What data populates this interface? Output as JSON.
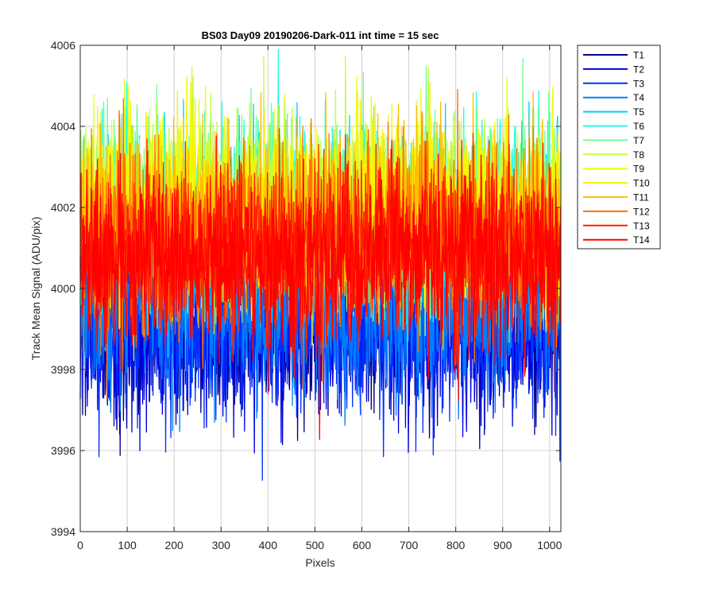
{
  "chart_data": {
    "type": "line",
    "title": "BS03 Day09 20190206-Dark-011 int time = 15 sec",
    "xlabel": "Pixels",
    "ylabel": "Track Mean Signal (ADU/pix)",
    "xlim": [
      0,
      1024
    ],
    "ylim": [
      3994,
      4006
    ],
    "xticks": [
      0,
      100,
      200,
      300,
      400,
      500,
      600,
      700,
      800,
      900,
      1000
    ],
    "yticks": [
      3994,
      3996,
      3998,
      4000,
      4002,
      4004,
      4006
    ],
    "grid": true,
    "legend_position": "outside-top-right",
    "x_points": 1024,
    "series": [
      {
        "name": "T1",
        "color": "#00008f",
        "mean": 3999.0,
        "spread": 1.0
      },
      {
        "name": "T2",
        "color": "#0000df",
        "mean": 3999.0,
        "spread": 1.1
      },
      {
        "name": "T3",
        "color": "#0030ff",
        "mean": 3999.2,
        "spread": 1.1
      },
      {
        "name": "T4",
        "color": "#0080ff",
        "mean": 3999.6,
        "spread": 1.1
      },
      {
        "name": "T5",
        "color": "#00cfff",
        "mean": 4001.6,
        "spread": 1.1
      },
      {
        "name": "T6",
        "color": "#20ffdf",
        "mean": 4001.9,
        "spread": 1.1
      },
      {
        "name": "T7",
        "color": "#70ff8f",
        "mean": 4002.0,
        "spread": 1.1
      },
      {
        "name": "T8",
        "color": "#bfff40",
        "mean": 4002.0,
        "spread": 1.1
      },
      {
        "name": "T9",
        "color": "#e8ff10",
        "mean": 4001.9,
        "spread": 1.1
      },
      {
        "name": "T10",
        "color": "#ffef00",
        "mean": 4001.8,
        "spread": 1.1
      },
      {
        "name": "T11",
        "color": "#ffbf00",
        "mean": 4001.6,
        "spread": 1.1
      },
      {
        "name": "T12",
        "color": "#ff7000",
        "mean": 4001.3,
        "spread": 1.1
      },
      {
        "name": "T13",
        "color": "#ff2000",
        "mean": 4001.0,
        "spread": 1.1
      },
      {
        "name": "T14",
        "color": "#ff0000",
        "mean": 4000.7,
        "spread": 1.1
      }
    ]
  }
}
